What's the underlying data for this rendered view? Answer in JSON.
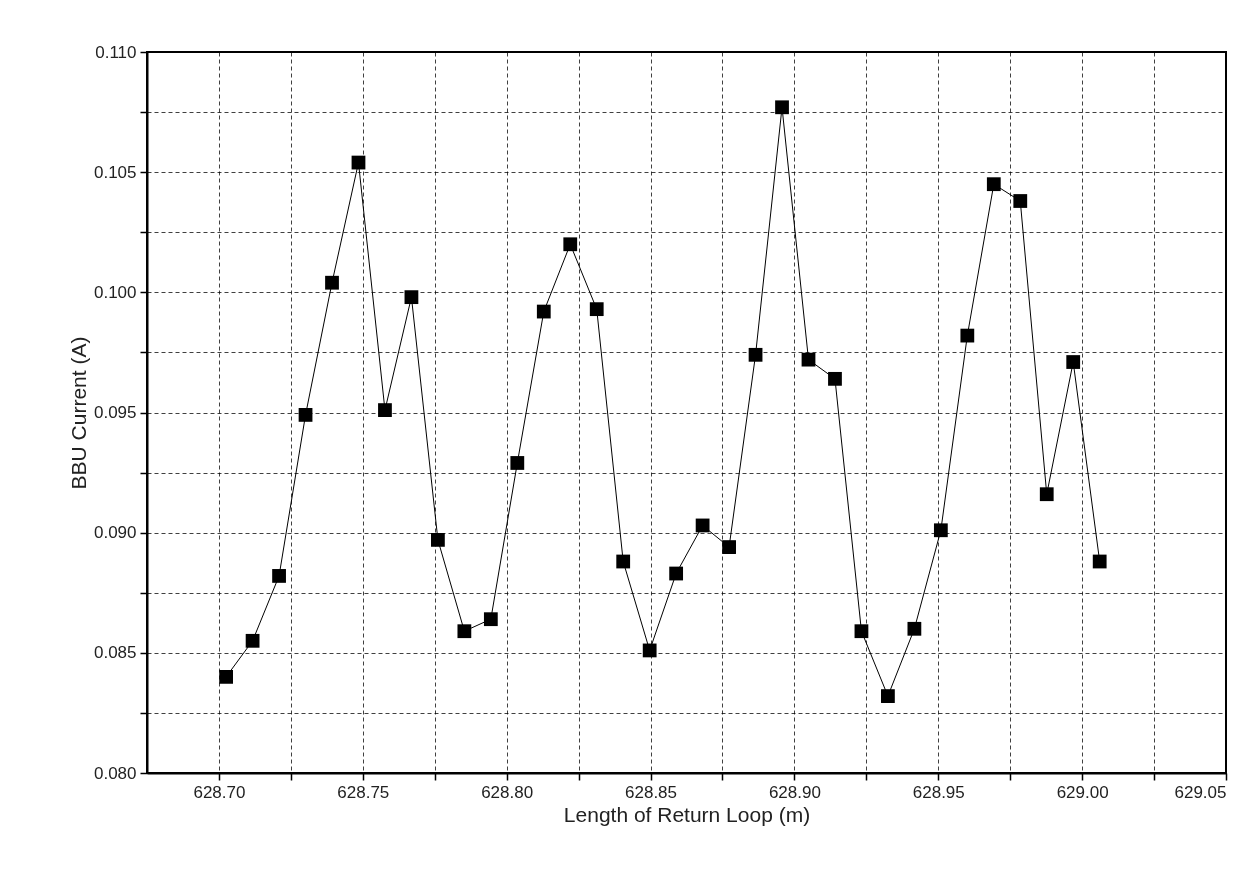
{
  "chart_data": {
    "type": "line",
    "xlabel": "Length of Return Loop (m)",
    "ylabel": "BBU Current (A)",
    "x": [
      628.7025,
      628.7117,
      628.7209,
      628.7301,
      628.7393,
      628.7485,
      628.7577,
      628.7669,
      628.7761,
      628.7853,
      628.7945,
      628.8037,
      628.8129,
      628.8221,
      628.8313,
      628.8405,
      628.8497,
      628.8589,
      628.8681,
      628.8773,
      628.8865,
      628.8957,
      628.9049,
      628.9141,
      628.9233,
      628.9325,
      628.9417,
      628.9509,
      628.9601,
      628.9693,
      628.9785,
      628.9877,
      628.9969,
      629.0061
    ],
    "series": [
      {
        "color": "#000000",
        "values": [
          0.084,
          0.0855,
          0.0882,
          0.0949,
          0.1004,
          0.1054,
          0.0951,
          0.0998,
          0.0897,
          0.0859,
          0.0864,
          0.0929,
          0.0992,
          0.102,
          0.0993,
          0.0888,
          0.0851,
          0.0883,
          0.0903,
          0.0894,
          0.0974,
          0.1077,
          0.0972,
          0.0964,
          0.0859,
          0.0832,
          0.086,
          0.0901,
          0.0982,
          0.1045,
          0.1038,
          0.0916,
          0.0971,
          0.0888
        ]
      }
    ],
    "xlim": [
      628.675,
      629.05
    ],
    "xticks": [
      {
        "value": 628.7,
        "label": "628.70"
      },
      {
        "value": 628.725,
        "label": null
      },
      {
        "value": 628.75,
        "label": "628.75"
      },
      {
        "value": 628.775,
        "label": null
      },
      {
        "value": 628.8,
        "label": "628.80"
      },
      {
        "value": 628.825,
        "label": null
      },
      {
        "value": 628.85,
        "label": "628.85"
      },
      {
        "value": 628.875,
        "label": null
      },
      {
        "value": 628.9,
        "label": "628.90"
      },
      {
        "value": 628.925,
        "label": null
      },
      {
        "value": 628.95,
        "label": "628.95"
      },
      {
        "value": 628.975,
        "label": null
      },
      {
        "value": 629.0,
        "label": "629.00"
      },
      {
        "value": 629.025,
        "label": null
      },
      {
        "value": 629.05,
        "label": "629.05"
      }
    ],
    "ylim": [
      0.08,
      0.11
    ],
    "yticks": [
      {
        "value": 0.08,
        "label": "0.080"
      },
      {
        "value": 0.0825,
        "label": null
      },
      {
        "value": 0.085,
        "label": "0.085"
      },
      {
        "value": 0.0875,
        "label": null
      },
      {
        "value": 0.09,
        "label": "0.090"
      },
      {
        "value": 0.0925,
        "label": null
      },
      {
        "value": 0.095,
        "label": "0.095"
      },
      {
        "value": 0.0975,
        "label": null
      },
      {
        "value": 0.1,
        "label": "0.100"
      },
      {
        "value": 0.1025,
        "label": null
      },
      {
        "value": 0.105,
        "label": "0.105"
      },
      {
        "value": 0.1075,
        "label": null
      },
      {
        "value": 0.11,
        "label": "0.110"
      }
    ],
    "grid": true,
    "marker": "square",
    "line_style": "solid"
  }
}
